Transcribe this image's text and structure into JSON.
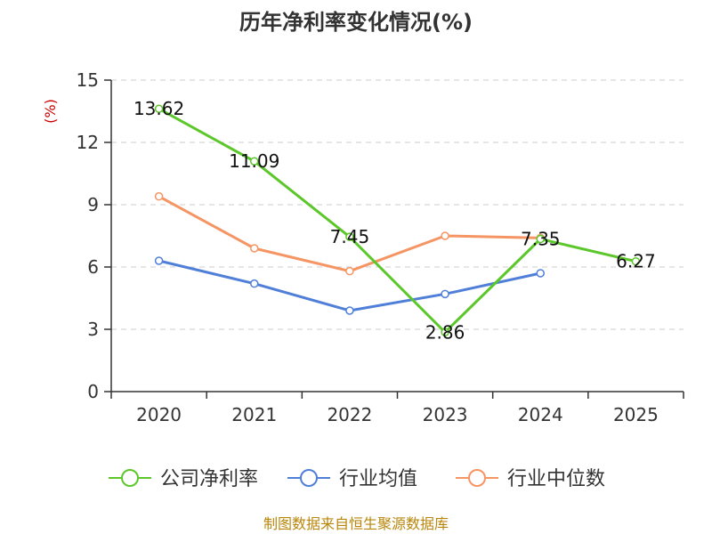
{
  "chart_data": {
    "type": "line",
    "title": "历年净利率变化情况(%)",
    "ylabel": "(%)",
    "xlabel": "",
    "categories": [
      "2020",
      "2021",
      "2022",
      "2023",
      "2024",
      "2025"
    ],
    "ylim": [
      0,
      15
    ],
    "yticks": [
      0,
      3,
      6,
      9,
      12,
      15
    ],
    "grid": true,
    "legend_position": "bottom",
    "series": [
      {
        "name": "公司净利率",
        "color": "#5cc72a",
        "values": [
          13.62,
          11.09,
          7.45,
          2.86,
          7.35,
          6.27
        ],
        "labels": [
          "13.62",
          "11.09",
          "7.45",
          "2.86",
          "7.35",
          "6.27"
        ]
      },
      {
        "name": "行业均值",
        "color": "#4f7fd8",
        "values": [
          6.3,
          5.2,
          3.9,
          4.7,
          5.7,
          null
        ]
      },
      {
        "name": "行业中位数",
        "color": "#f59563",
        "values": [
          9.4,
          6.9,
          5.8,
          7.5,
          7.4,
          null
        ]
      }
    ],
    "source": "制图数据来自恒生聚源数据库"
  }
}
